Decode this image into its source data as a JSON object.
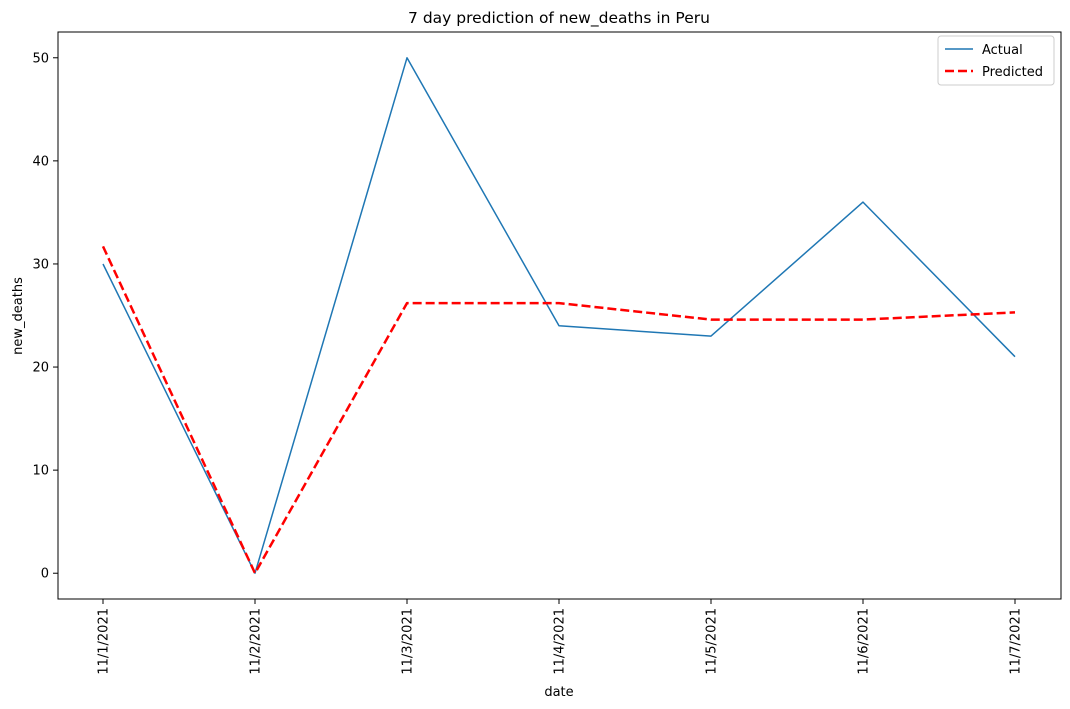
{
  "chart_data": {
    "type": "line",
    "title": "7 day prediction of new_deaths in Peru",
    "xlabel": "date",
    "ylabel": "new_deaths",
    "categories": [
      "11/1/2021",
      "11/2/2021",
      "11/3/2021",
      "11/4/2021",
      "11/5/2021",
      "11/6/2021",
      "11/7/2021"
    ],
    "series": [
      {
        "name": "Actual",
        "values": [
          30,
          0,
          50,
          24,
          23,
          36,
          21
        ],
        "color": "#1f77b4",
        "style": "solid"
      },
      {
        "name": "Predicted",
        "values": [
          31.7,
          0,
          26.2,
          26.2,
          24.6,
          24.6,
          25.3
        ],
        "color": "#ff0000",
        "style": "dashed"
      }
    ],
    "ylim": [
      -2.5,
      52.5
    ],
    "yticks": [
      0,
      10,
      20,
      30,
      40,
      50
    ],
    "grid": false,
    "legend_position": "top-right"
  }
}
